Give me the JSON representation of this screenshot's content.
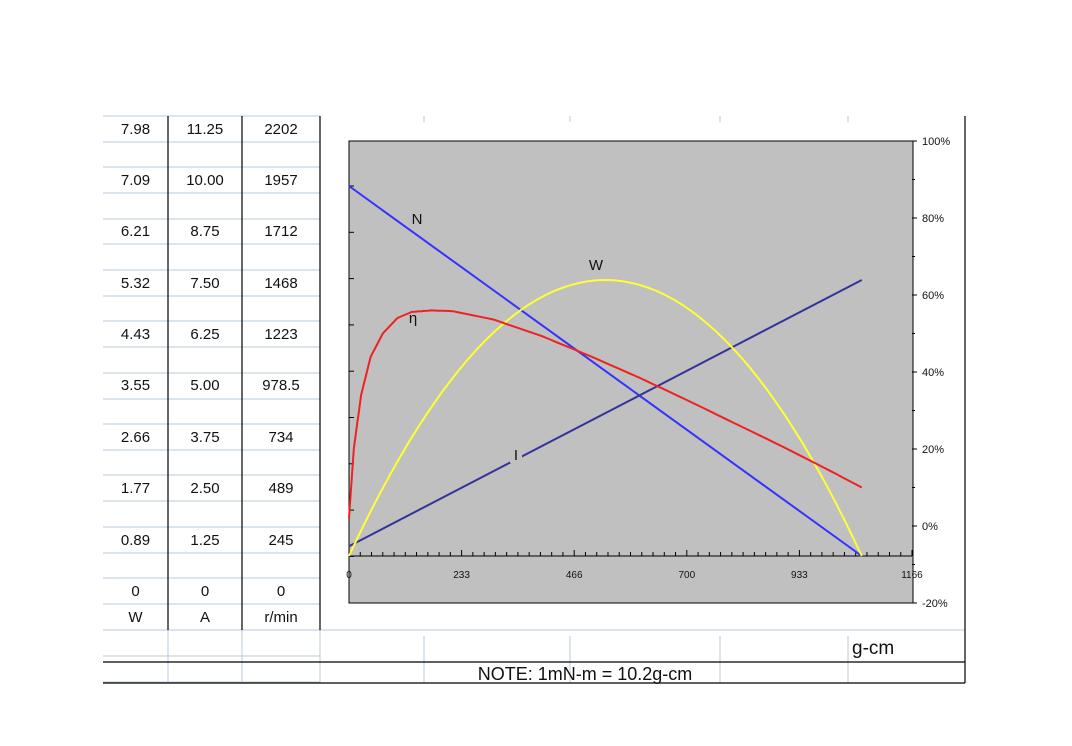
{
  "table": {
    "rows": [
      {
        "w": "7.98",
        "a": "11.25",
        "r": "2202"
      },
      {
        "w": "7.09",
        "a": "10.00",
        "r": "1957"
      },
      {
        "w": "6.21",
        "a": "8.75",
        "r": "1712"
      },
      {
        "w": "5.32",
        "a": "7.50",
        "r": "1468"
      },
      {
        "w": "4.43",
        "a": "6.25",
        "r": "1223"
      },
      {
        "w": "3.55",
        "a": "5.00",
        "r": "978.5"
      },
      {
        "w": "2.66",
        "a": "3.75",
        "r": "734"
      },
      {
        "w": "1.77",
        "a": "2.50",
        "r": "489"
      },
      {
        "w": "0.89",
        "a": "1.25",
        "r": "245"
      },
      {
        "w": "0",
        "a": "0",
        "r": "0"
      }
    ],
    "units": {
      "w": "W",
      "a": "A",
      "r": "r/min"
    }
  },
  "footer": {
    "x_unit": "g-cm",
    "note": "NOTE: 1mN-m = 10.2g-cm"
  },
  "chart_data": {
    "type": "line",
    "xlim": [
      0,
      1166
    ],
    "x_ticks": [
      "0",
      "233",
      "466",
      "700",
      "933",
      "1166"
    ],
    "y_right_ticks": [
      "100%",
      "80%",
      "60%",
      "40%",
      "20%",
      "0%",
      "-20%"
    ],
    "background": "#c0c0c0",
    "series": [
      {
        "name": "N",
        "color": "#3333ff",
        "x": [
          0,
          1062
        ],
        "y": [
          2202,
          0
        ]
      },
      {
        "name": "I",
        "color": "#333399",
        "x": [
          0,
          1062
        ],
        "y": [
          0.4,
          11.25
        ]
      },
      {
        "name": "W",
        "color": "#ffff33",
        "x": [
          0,
          130,
          265,
          400,
          530,
          660,
          795,
          930,
          1062
        ],
        "y": [
          0,
          3.4,
          5.9,
          7.4,
          7.98,
          7.4,
          5.9,
          3.4,
          0
        ]
      },
      {
        "name": "η",
        "color": "#ee2222",
        "x": [
          0,
          10,
          25,
          45,
          70,
          100,
          130,
          170,
          215,
          300,
          400,
          500,
          600,
          700,
          800,
          900,
          1000,
          1062
        ],
        "y": [
          2,
          20,
          34,
          44,
          50,
          54,
          55.6,
          56,
          55.8,
          53.6,
          49.3,
          44.1,
          38.6,
          32.7,
          26.6,
          20.5,
          14.1,
          10
        ]
      }
    ]
  }
}
